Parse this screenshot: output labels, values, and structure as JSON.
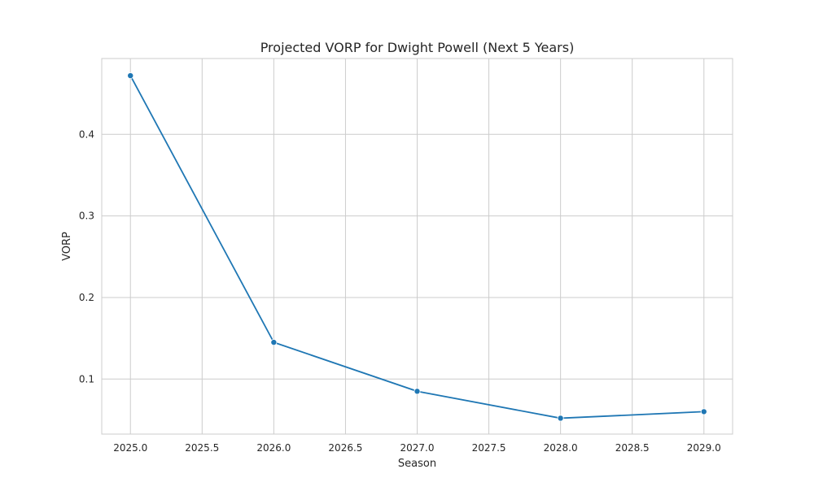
{
  "chart_data": {
    "type": "line",
    "title": "Projected VORP for Dwight Powell (Next 5 Years)",
    "xlabel": "Season",
    "ylabel": "VORP",
    "x": [
      2025.0,
      2026.0,
      2027.0,
      2028.0,
      2029.0
    ],
    "series": [
      {
        "values": [
          0.472,
          0.145,
          0.085,
          0.052,
          0.06
        ],
        "color": "#1f77b4",
        "marker": "circle"
      }
    ],
    "xlim": [
      2024.8,
      2029.2
    ],
    "ylim": [
      0.0325,
      0.493
    ],
    "x_ticks": [
      2025.0,
      2025.5,
      2026.0,
      2026.5,
      2027.0,
      2027.5,
      2028.0,
      2028.5,
      2029.0
    ],
    "x_tick_labels": [
      "2025.0",
      "2025.5",
      "2026.0",
      "2026.5",
      "2027.0",
      "2027.5",
      "2028.0",
      "2028.5",
      "2029.0"
    ],
    "y_ticks": [
      0.1,
      0.2,
      0.3,
      0.4
    ],
    "y_tick_labels": [
      "0.1",
      "0.2",
      "0.3",
      "0.4"
    ],
    "grid": true,
    "legend": "none",
    "colors": {
      "grid": "#cccccc",
      "frame": "#cccccc",
      "line": "#1f77b4",
      "background": "#ffffff"
    }
  }
}
